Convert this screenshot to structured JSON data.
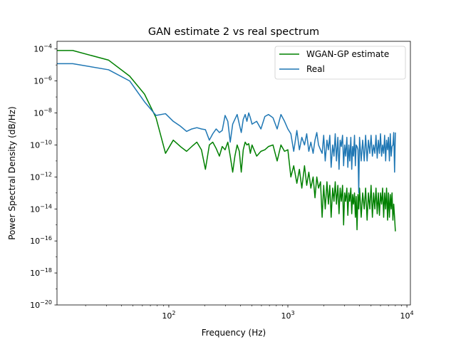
{
  "chart_data": {
    "type": "line",
    "title": "GAN estimate 2 vs real spectrum",
    "xlabel": "Frequency (Hz)",
    "ylabel": "Power Spectral Density (dB/Hz)",
    "xscale": "log",
    "yscale": "log",
    "xlim": [
      11.5,
      10700
    ],
    "ylim": [
      1e-20,
      0.0003
    ],
    "x_ticks": [
      {
        "value": 100,
        "base": "10",
        "exp": "2"
      },
      {
        "value": 1000,
        "base": "10",
        "exp": "3"
      },
      {
        "value": 10000,
        "base": "10",
        "exp": "4"
      }
    ],
    "y_ticks": [
      {
        "value": 0.0001,
        "base": "10",
        "exp": "−4"
      },
      {
        "value": 1e-06,
        "base": "10",
        "exp": "−6"
      },
      {
        "value": 1e-08,
        "base": "10",
        "exp": "−8"
      },
      {
        "value": 1e-10,
        "base": "10",
        "exp": "−10"
      },
      {
        "value": 1e-12,
        "base": "10",
        "exp": "−12"
      },
      {
        "value": 1e-14,
        "base": "10",
        "exp": "−14"
      },
      {
        "value": 1e-16,
        "base": "10",
        "exp": "−16"
      },
      {
        "value": 1e-18,
        "base": "10",
        "exp": "−18"
      },
      {
        "value": 1e-20,
        "base": "10",
        "exp": "−20"
      }
    ],
    "legend_position": "top-right",
    "grid": false,
    "series": [
      {
        "name": "WGAN-GP estimate",
        "color": "#008000",
        "x": [
          11.5,
          15.6,
          31.2,
          46.9,
          62.5,
          78.1,
          93.8,
          109,
          125,
          141,
          156,
          172,
          188,
          203,
          219,
          234,
          250,
          266,
          281,
          297,
          313,
          328,
          344,
          359,
          375,
          391,
          406,
          422,
          438,
          453,
          469,
          484,
          500,
          547,
          594,
          641,
          688,
          750,
          813,
          875,
          938,
          1000,
          1060,
          1120,
          1190,
          1250,
          1310,
          1380,
          1440,
          1500,
          1560,
          1630,
          1690,
          1750,
          1810,
          1880,
          1940,
          2000,
          2060,
          2130,
          2190,
          2250,
          2310,
          2380,
          2440,
          2500,
          2560,
          2630,
          2690,
          2750,
          2810,
          2880,
          2940,
          3000,
          3060,
          3130,
          3190,
          3250,
          3310,
          3380,
          3440,
          3500,
          3560,
          3630,
          3690,
          3750,
          3810,
          3880,
          3940,
          4000,
          4130,
          4250,
          4380,
          4500,
          4630,
          4750,
          4880,
          5000,
          5130,
          5250,
          5380,
          5500,
          5630,
          5750,
          5880,
          6000,
          6130,
          6250,
          6380,
          6500,
          6630,
          6750,
          6880,
          7000,
          7130,
          7250,
          7380,
          7500,
          7630,
          7750,
          7880,
          8000
        ],
        "values": [
          8e-05,
          8e-05,
          2e-05,
          2e-06,
          1.5e-07,
          5e-09,
          3e-11,
          2e-10,
          8e-11,
          4e-11,
          8e-11,
          1.5e-10,
          5e-11,
          3e-12,
          1e-10,
          1.5e-10,
          6e-11,
          2e-11,
          8e-11,
          5e-11,
          1.5e-10,
          2e-11,
          2e-12,
          2e-11,
          1e-10,
          4e-11,
          2e-12,
          5e-11,
          1.5e-10,
          1e-10,
          1.2e-10,
          3e-11,
          1e-10,
          2e-11,
          4e-11,
          5e-11,
          8e-11,
          1e-10,
          1e-11,
          1e-10,
          4e-11,
          5e-11,
          1e-12,
          5e-12,
          4e-13,
          3e-12,
          2e-13,
          5e-12,
          3e-13,
          2e-12,
          2e-13,
          1e-12,
          5e-14,
          1e-12,
          2e-13,
          5e-13,
          3e-15,
          3e-13,
          1e-14,
          5e-13,
          2e-14,
          3e-13,
          3e-15,
          2e-13,
          3e-14,
          5e-13,
          2e-14,
          3e-13,
          5e-15,
          2e-13,
          3e-14,
          3e-13,
          1e-15,
          1e-13,
          3e-14,
          2e-13,
          4e-15,
          1e-13,
          3e-14,
          2e-13,
          5e-15,
          8e-14,
          2e-14,
          1e-13,
          3e-15,
          6e-14,
          5e-16,
          8e-14,
          1e-14,
          2e-13,
          3e-15,
          1e-13,
          1e-14,
          2e-13,
          2e-15,
          1e-13,
          1e-14,
          3e-13,
          3e-15,
          1e-13,
          1e-14,
          2e-13,
          5e-15,
          1e-13,
          4e-15,
          1e-13,
          2e-14,
          2e-13,
          3e-15,
          1e-13,
          1e-14,
          2e-13,
          2e-15,
          1e-13,
          3e-15,
          8e-14,
          1e-14,
          1e-13,
          2e-15,
          2e-14,
          3e-15,
          4e-16
        ]
      },
      {
        "name": "Real",
        "color": "#1f77b4",
        "x": [
          11.5,
          15.6,
          31.2,
          46.9,
          62.5,
          78.1,
          93.8,
          109,
          125,
          141,
          156,
          172,
          188,
          203,
          219,
          234,
          250,
          266,
          281,
          297,
          313,
          328,
          344,
          359,
          375,
          391,
          406,
          422,
          438,
          453,
          469,
          484,
          500,
          547,
          594,
          641,
          688,
          750,
          813,
          875,
          938,
          1000,
          1060,
          1120,
          1190,
          1250,
          1310,
          1380,
          1440,
          1500,
          1560,
          1630,
          1690,
          1750,
          1810,
          1880,
          1940,
          2000,
          2060,
          2130,
          2190,
          2250,
          2310,
          2380,
          2440,
          2500,
          2560,
          2630,
          2690,
          2750,
          2810,
          2880,
          2940,
          3000,
          3060,
          3130,
          3190,
          3250,
          3310,
          3380,
          3440,
          3500,
          3560,
          3630,
          3690,
          3750,
          3810,
          3880,
          3940,
          4000,
          4130,
          4250,
          4380,
          4500,
          4630,
          4750,
          4880,
          5000,
          5130,
          5250,
          5380,
          5500,
          5630,
          5750,
          5880,
          6000,
          6130,
          6250,
          6380,
          6500,
          6630,
          6750,
          6880,
          7000,
          7130,
          7250,
          7380,
          7500,
          7630,
          7750,
          7880,
          8000
        ],
        "values": [
          1.2e-05,
          1.2e-05,
          5e-06,
          1e-06,
          5e-08,
          7e-09,
          9e-09,
          3e-09,
          1.5e-09,
          7e-10,
          1e-09,
          1.2e-09,
          1e-09,
          9e-10,
          2e-10,
          5e-10,
          1e-09,
          6e-10,
          8e-10,
          7e-09,
          3e-09,
          1.5e-10,
          2e-09,
          4e-09,
          8e-09,
          2e-09,
          6e-10,
          4e-09,
          8e-09,
          3e-09,
          1e-08,
          5e-09,
          2e-09,
          3e-09,
          1e-09,
          6e-09,
          8e-09,
          5e-09,
          1e-09,
          8e-09,
          3e-09,
          1e-09,
          5e-10,
          4e-11,
          8e-10,
          5e-11,
          3e-10,
          1e-10,
          5e-10,
          4e-11,
          1.5e-10,
          3e-11,
          2e-10,
          6e-10,
          1e-10,
          5e-11,
          3e-11,
          4e-10,
          1e-11,
          2e-10,
          5e-11,
          4e-10,
          4e-12,
          1e-10,
          2e-11,
          5e-10,
          1e-11,
          3e-10,
          3e-12,
          2e-10,
          8e-11,
          4e-10,
          5e-12,
          1e-10,
          2e-11,
          3e-10,
          4e-12,
          1e-10,
          1e-11,
          3e-10,
          3e-12,
          8e-11,
          2e-11,
          4e-10,
          5e-12,
          1e-10,
          8e-11,
          5e-11,
          1e-13,
          3e-10,
          1e-11,
          2e-10,
          1e-11,
          4e-10,
          1e-11,
          2e-10,
          3e-11,
          4e-10,
          2e-11,
          1e-10,
          3e-11,
          4e-10,
          1.5e-11,
          2e-10,
          3e-11,
          5e-10,
          2e-11,
          1e-10,
          3e-11,
          4e-10,
          1e-11,
          2e-10,
          5e-11,
          3e-10,
          1e-11,
          5e-10,
          2e-11,
          8e-11,
          1e-10,
          6e-10,
          2e-12,
          6e-10
        ]
      }
    ]
  }
}
